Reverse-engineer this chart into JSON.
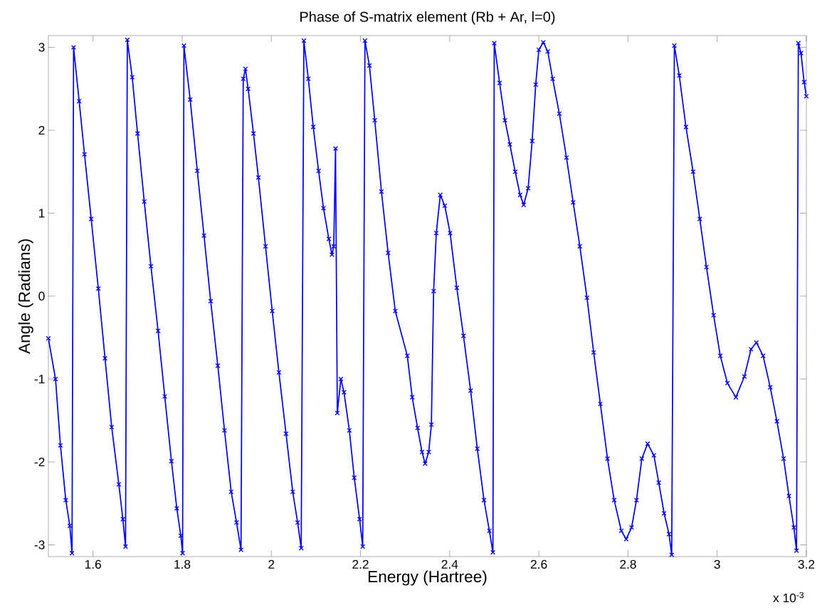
{
  "chart_data": {
    "type": "line",
    "title": "Phase of S-matrix element (Rb + Ar, l=0)",
    "xlabel": "Energy (Hartree)",
    "ylabel": "Angle (Radians)",
    "annotations": [
      "x 10$^{-3}$"
    ],
    "xlim": [
      1.5,
      3.2
    ],
    "ylim": [
      -3.1416,
      3.1416
    ],
    "xticks": [
      1.6,
      1.8,
      2,
      2.2,
      2.4,
      2.6,
      2.8,
      3,
      3.2
    ],
    "yticks": [
      -3,
      -2,
      -1,
      0,
      1,
      2,
      3
    ],
    "grid": false,
    "marker": "cross",
    "line_style": "solid",
    "series": [
      {
        "color": "#0000ff",
        "x": [
          1.5,
          1.516,
          1.527,
          1.539,
          1.548,
          1.553,
          1.5565,
          1.569,
          1.581,
          1.596,
          1.612,
          1.627,
          1.642,
          1.658,
          1.667,
          1.673,
          1.677,
          1.688,
          1.7,
          1.715,
          1.73,
          1.746,
          1.761,
          1.776,
          1.788,
          1.797,
          1.801,
          1.804,
          1.818,
          1.834,
          1.849,
          1.864,
          1.88,
          1.895,
          1.91,
          1.922,
          1.932,
          1.937,
          1.942,
          1.948,
          1.96,
          1.971,
          1.987,
          2.002,
          2.017,
          2.033,
          2.048,
          2.059,
          2.067,
          2.073,
          2.083,
          2.094,
          2.106,
          2.117,
          2.129,
          2.136,
          2.14,
          2.144,
          2.148,
          2.156,
          2.163,
          2.175,
          2.186,
          2.198,
          2.205,
          2.21,
          2.22,
          2.232,
          2.247,
          2.262,
          2.278,
          2.305,
          2.316,
          2.328,
          2.338,
          2.345,
          2.353,
          2.359,
          2.364,
          2.37,
          2.379,
          2.389,
          2.401,
          2.416,
          2.431,
          2.447,
          2.462,
          2.477,
          2.489,
          2.497,
          2.5,
          2.512,
          2.524,
          2.535,
          2.547,
          2.558,
          2.566,
          2.576,
          2.585,
          2.593,
          2.6,
          2.61,
          2.62,
          2.631,
          2.646,
          2.662,
          2.677,
          2.692,
          2.708,
          2.723,
          2.738,
          2.754,
          2.769,
          2.785,
          2.796,
          2.808,
          2.819,
          2.831,
          2.844,
          2.858,
          2.869,
          2.881,
          2.892,
          2.898,
          2.904,
          2.915,
          2.93,
          2.946,
          2.961,
          2.976,
          2.992,
          3.007,
          3.023,
          3.042,
          3.061,
          3.076,
          3.088,
          3.103,
          3.119,
          3.134,
          3.149,
          3.161,
          3.172,
          3.178,
          3.182,
          3.188,
          3.195,
          3.2
        ],
        "values": [
          -0.51,
          -1.0,
          -1.8,
          -2.46,
          -2.77,
          -3.1,
          3.0,
          2.35,
          1.71,
          0.93,
          0.09,
          -0.75,
          -1.58,
          -2.27,
          -2.69,
          -3.02,
          3.09,
          2.64,
          1.96,
          1.14,
          0.36,
          -0.42,
          -1.21,
          -1.99,
          -2.56,
          -2.89,
          -3.1,
          3.02,
          2.37,
          1.51,
          0.73,
          -0.06,
          -0.84,
          -1.62,
          -2.36,
          -2.73,
          -3.06,
          2.62,
          2.74,
          2.5,
          1.96,
          1.43,
          0.6,
          -0.18,
          -0.92,
          -1.66,
          -2.36,
          -2.73,
          -3.04,
          3.08,
          2.62,
          2.04,
          1.51,
          1.06,
          0.69,
          0.5,
          0.6,
          1.78,
          -1.41,
          -1.0,
          -1.16,
          -1.62,
          -2.19,
          -2.69,
          -3.02,
          3.08,
          2.78,
          2.12,
          1.26,
          0.52,
          -0.18,
          -0.72,
          -1.22,
          -1.59,
          -1.88,
          -2.02,
          -1.88,
          -1.55,
          0.06,
          0.76,
          1.22,
          1.09,
          0.76,
          0.1,
          -0.48,
          -1.14,
          -1.84,
          -2.46,
          -2.83,
          -3.09,
          3.05,
          2.57,
          2.12,
          1.83,
          1.5,
          1.22,
          1.1,
          1.3,
          1.87,
          2.55,
          2.97,
          3.06,
          2.95,
          2.62,
          2.2,
          1.67,
          1.13,
          0.6,
          -0.02,
          -0.68,
          -1.3,
          -1.96,
          -2.46,
          -2.83,
          -2.93,
          -2.79,
          -2.46,
          -1.96,
          -1.78,
          -1.92,
          -2.25,
          -2.62,
          -2.87,
          -3.12,
          3.02,
          2.66,
          2.04,
          1.5,
          0.93,
          0.35,
          -0.23,
          -0.72,
          -1.05,
          -1.22,
          -0.97,
          -0.64,
          -0.56,
          -0.72,
          -1.1,
          -1.51,
          -1.96,
          -2.41,
          -2.79,
          -3.07,
          3.05,
          2.93,
          2.58,
          2.41
        ]
      }
    ]
  }
}
